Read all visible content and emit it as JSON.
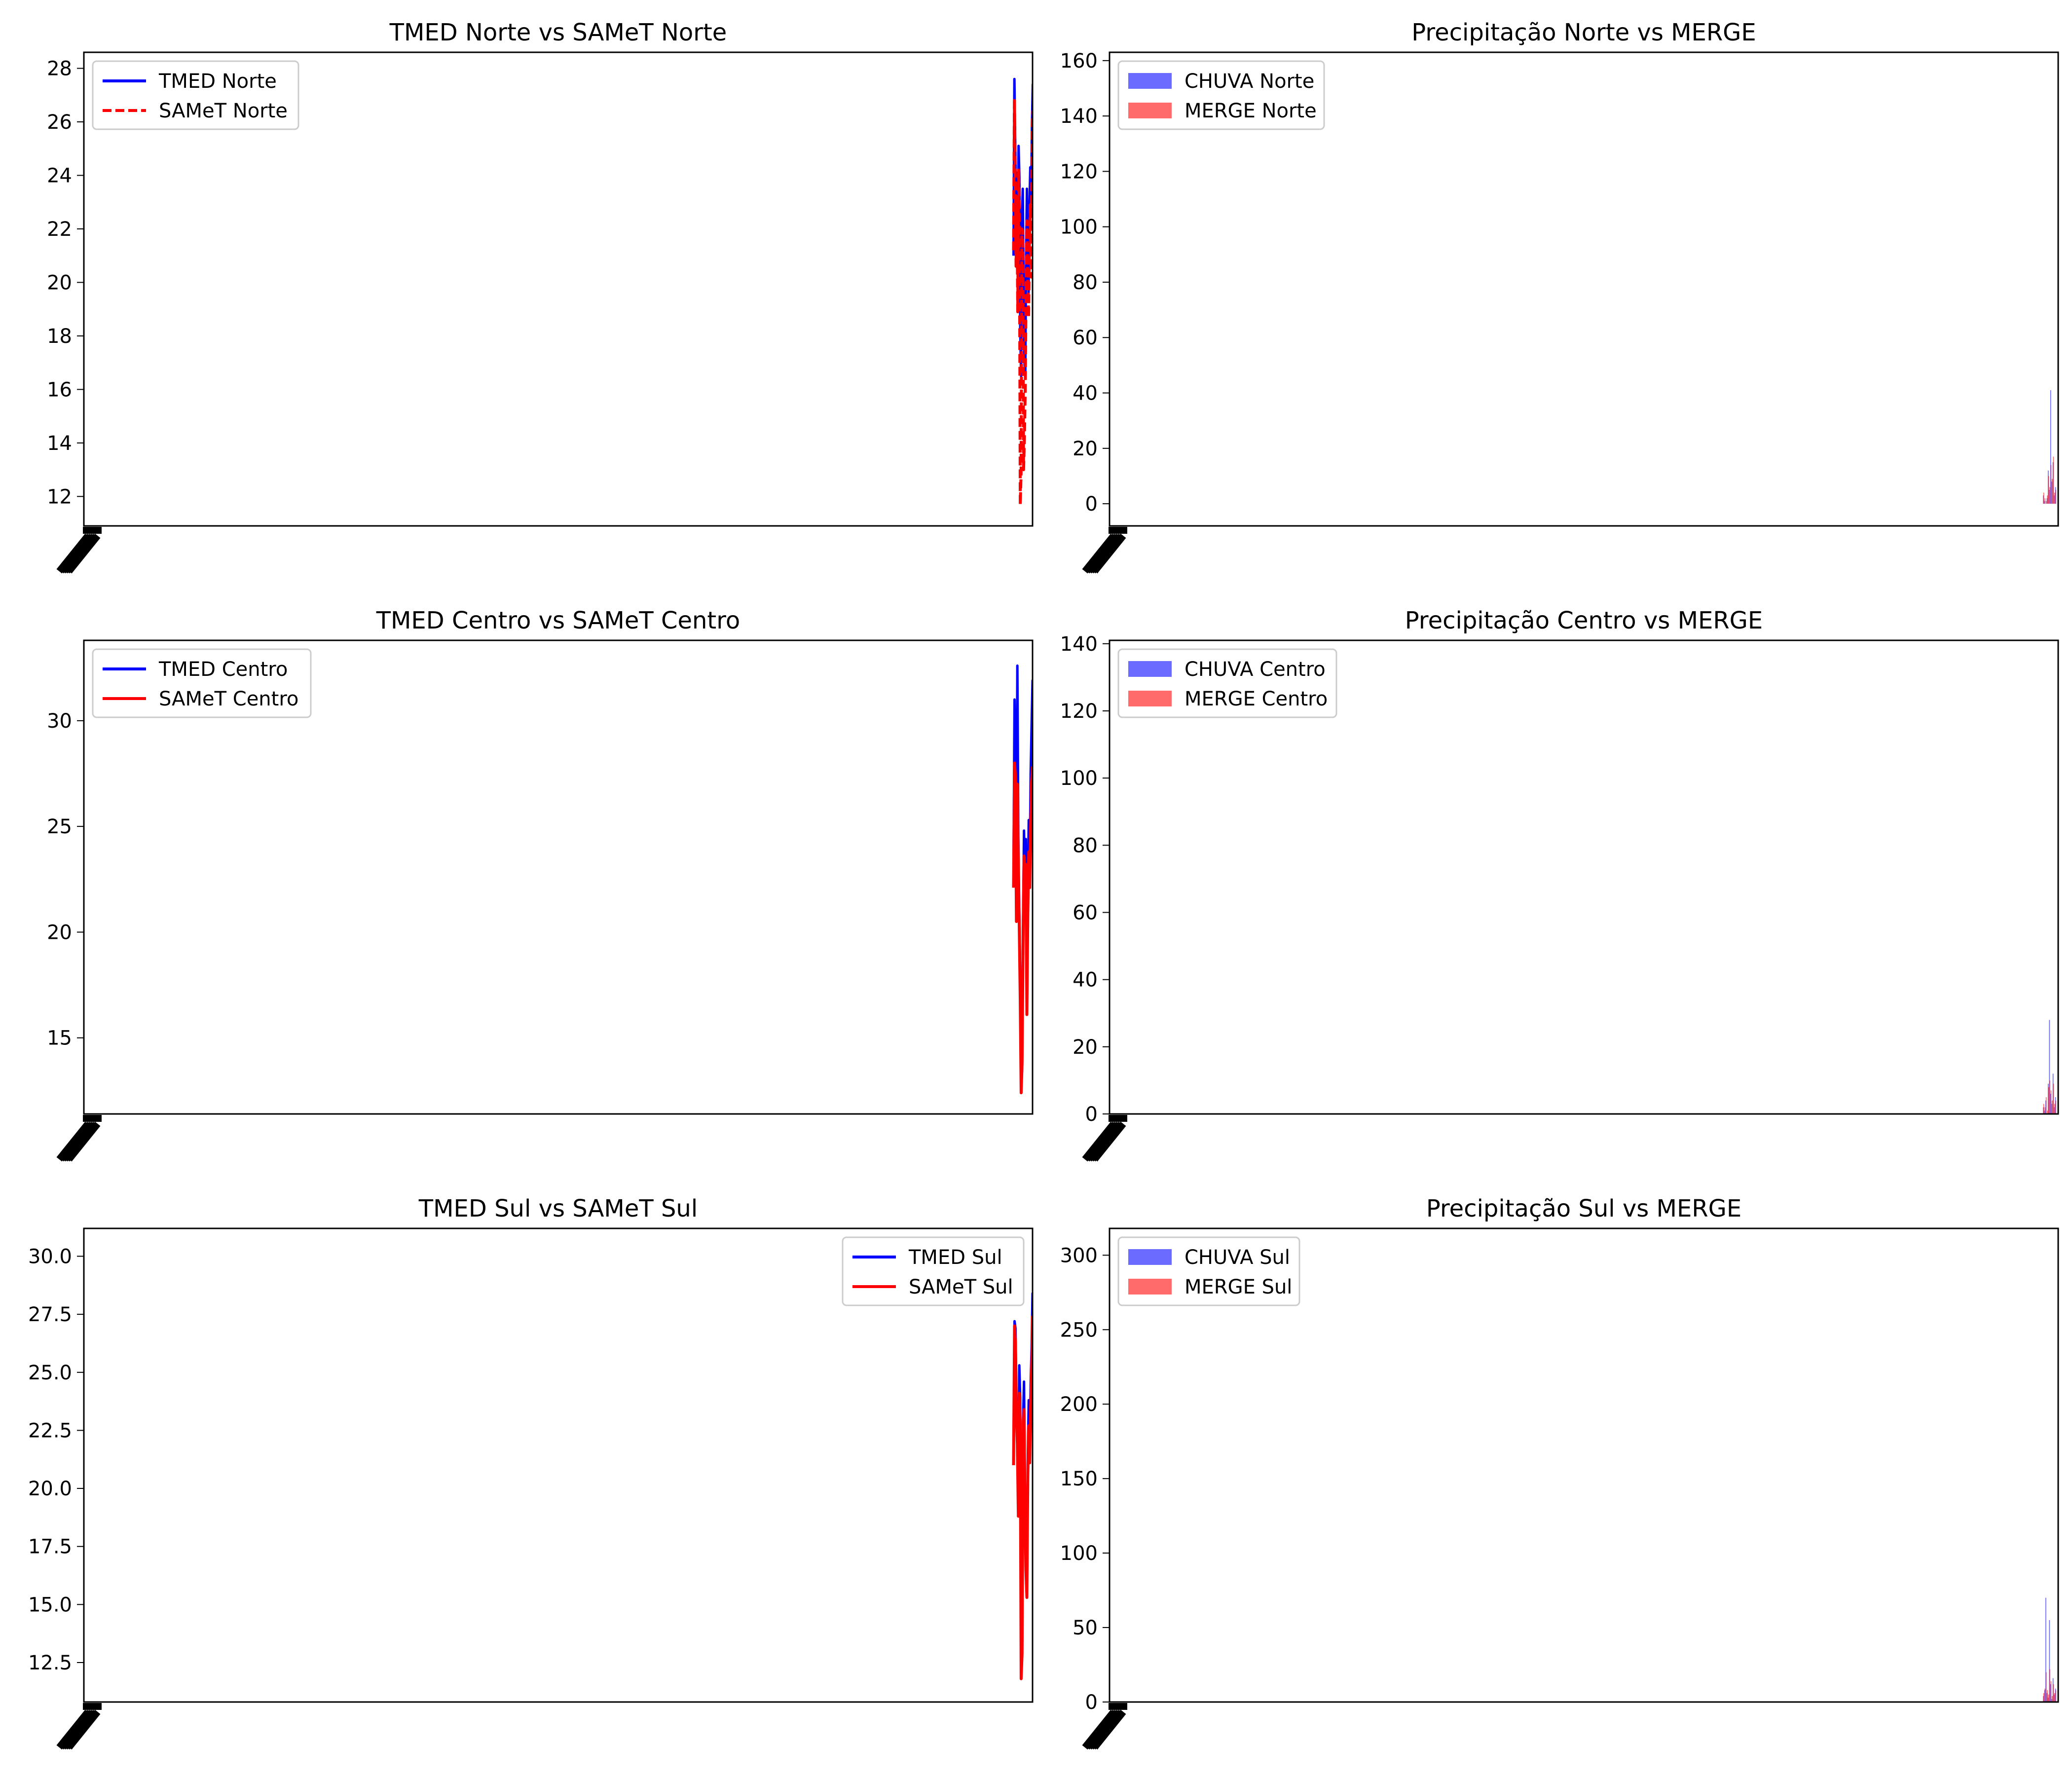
{
  "chart_data": [
    {
      "type": "line",
      "title": "TMED Norte vs SAMeT Norte",
      "ylim": [
        10.9,
        28.6
      ],
      "yticks": [
        12,
        14,
        16,
        18,
        20,
        22,
        24,
        26,
        28
      ],
      "legend": "top-left",
      "series": [
        {
          "name": "TMED Norte",
          "color": "#0000ff",
          "style": "solid",
          "values": [
            21.0,
            27.6,
            25.2,
            22.8,
            24.1,
            20.5,
            25.1,
            23.9,
            18.2,
            16.5,
            22.4,
            23.5,
            19.8,
            17.1,
            16.4,
            20.9,
            23.5,
            21.2,
            19.6,
            22.8,
            24.3,
            23.1,
            25.9,
            27.4,
            26.8,
            27.4
          ]
        },
        {
          "name": "SAMeT Norte",
          "color": "#ff0000",
          "style": "dashed",
          "values": [
            21.2,
            26.8,
            24.0,
            20.6,
            23.1,
            18.9,
            24.2,
            22.7,
            11.7,
            12.9,
            22.0,
            21.9,
            13.0,
            14.2,
            16.0,
            19.8,
            22.3,
            20.1,
            18.7,
            21.6,
            22.9,
            20.2,
            24.6,
            26.4,
            25.6,
            27.4
          ]
        }
      ]
    },
    {
      "type": "bar",
      "title": "Precipitação Norte vs MERGE",
      "ylim": [
        -8,
        163
      ],
      "yticks": [
        0,
        20,
        40,
        60,
        80,
        100,
        120,
        140,
        160
      ],
      "legend": "top-left",
      "series": [
        {
          "name": "CHUVA Norte",
          "color": "#0000ff",
          "values": [
            3,
            1,
            0,
            2,
            12,
            5,
            41,
            8,
            15,
            3,
            6
          ]
        },
        {
          "name": "MERGE Norte",
          "color": "#ff0000",
          "values": [
            4,
            2,
            1,
            3,
            10,
            6,
            14,
            9,
            17,
            4,
            5
          ]
        }
      ]
    },
    {
      "type": "line",
      "title": "TMED Centro vs SAMeT Centro",
      "ylim": [
        11.4,
        33.8
      ],
      "yticks": [
        15,
        20,
        25,
        30
      ],
      "legend": "top-left",
      "series": [
        {
          "name": "TMED Centro",
          "color": "#0000ff",
          "values": [
            23.3,
            31.0,
            28.5,
            21.1,
            32.6,
            24.5,
            21.0,
            18.0,
            14.0,
            13.4,
            20.5,
            24.8,
            22.1,
            24.4,
            17.0,
            21.8,
            25.3,
            23.0,
            27.5,
            29.8,
            31.9,
            28.1,
            33.0
          ]
        },
        {
          "name": "SAMeT Centro",
          "color": "#ff0000",
          "values": [
            22.1,
            28.0,
            27.3,
            20.5,
            27.0,
            23.1,
            20.2,
            16.9,
            12.4,
            13.8,
            19.5,
            23.6,
            21.3,
            23.2,
            16.1,
            20.9,
            23.8,
            22.1,
            25.1,
            27.1,
            27.8,
            26.0,
            28.0
          ]
        }
      ]
    },
    {
      "type": "bar",
      "title": "Precipitação Centro vs MERGE",
      "ylim": [
        0,
        141
      ],
      "yticks": [
        0,
        20,
        40,
        60,
        80,
        100,
        120,
        140
      ],
      "legend": "top-left",
      "series": [
        {
          "name": "CHUVA Centro",
          "color": "#0000ff",
          "values": [
            2,
            1,
            4,
            0,
            9,
            28,
            6,
            3,
            12,
            2,
            5
          ]
        },
        {
          "name": "MERGE Centro",
          "color": "#ff0000",
          "values": [
            3,
            2,
            5,
            1,
            8,
            10,
            7,
            4,
            9,
            3,
            4
          ]
        }
      ]
    },
    {
      "type": "line",
      "title": "TMED Sul vs SAMeT Sul",
      "ylim": [
        10.8,
        31.2
      ],
      "yticks": [
        12.5,
        15.0,
        17.5,
        20.0,
        22.5,
        25.0,
        27.5,
        30.0
      ],
      "legend": "top-right",
      "series": [
        {
          "name": "TMED Sul",
          "color": "#0000ff",
          "values": [
            21.8,
            27.2,
            26.9,
            24.0,
            22.8,
            19.6,
            25.3,
            23.9,
            15.1,
            13.1,
            22.9,
            24.6,
            20.1,
            17.2,
            16.0,
            21.4,
            23.8,
            22.0,
            24.5,
            26.1,
            28.4,
            27.5,
            30.3
          ]
        },
        {
          "name": "SAMeT Sul",
          "color": "#ff0000",
          "values": [
            21.0,
            27.0,
            26.2,
            23.1,
            21.9,
            18.8,
            24.1,
            22.8,
            11.8,
            12.9,
            22.1,
            23.4,
            19.1,
            16.5,
            15.3,
            20.6,
            22.7,
            21.1,
            23.6,
            25.0,
            27.4,
            26.5,
            27.5
          ]
        }
      ]
    },
    {
      "type": "bar",
      "title": "Precipitação Sul vs MERGE",
      "ylim": [
        0,
        318
      ],
      "yticks": [
        0,
        50,
        100,
        150,
        200,
        250,
        300
      ],
      "legend": "top-left",
      "series": [
        {
          "name": "CHUVA Sul",
          "color": "#0000ff",
          "values": [
            4,
            8,
            70,
            6,
            3,
            55,
            12,
            2,
            16,
            5,
            9
          ]
        },
        {
          "name": "MERGE Sul",
          "color": "#ff0000",
          "values": [
            6,
            9,
            20,
            8,
            5,
            22,
            14,
            4,
            12,
            6,
            8
          ]
        }
      ]
    }
  ]
}
